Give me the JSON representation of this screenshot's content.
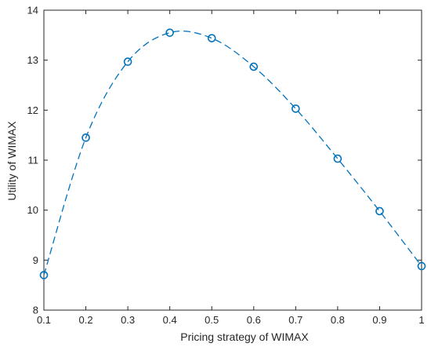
{
  "chart_data": {
    "type": "line",
    "xlabel": "Pricing strategy of WIMAX",
    "ylabel": "Utility of WIMAX",
    "xlim": [
      0.1,
      1.0
    ],
    "ylim": [
      8,
      14
    ],
    "xticks": [
      "0.1",
      "0.2",
      "0.3",
      "0.4",
      "0.5",
      "0.6",
      "0.7",
      "0.8",
      "0.9",
      "1"
    ],
    "yticks": [
      "8",
      "9",
      "10",
      "11",
      "12",
      "13",
      "14"
    ],
    "grid": false,
    "series": [
      {
        "x": [
          0.1,
          0.2,
          0.3,
          0.4,
          0.5,
          0.6,
          0.7,
          0.8,
          0.9,
          1.0
        ],
        "values": [
          8.7,
          11.45,
          12.97,
          13.55,
          13.44,
          12.87,
          12.03,
          11.03,
          9.98,
          8.88
        ],
        "color": "#0072BD",
        "line_style": "dashed",
        "marker": "circle"
      }
    ]
  }
}
